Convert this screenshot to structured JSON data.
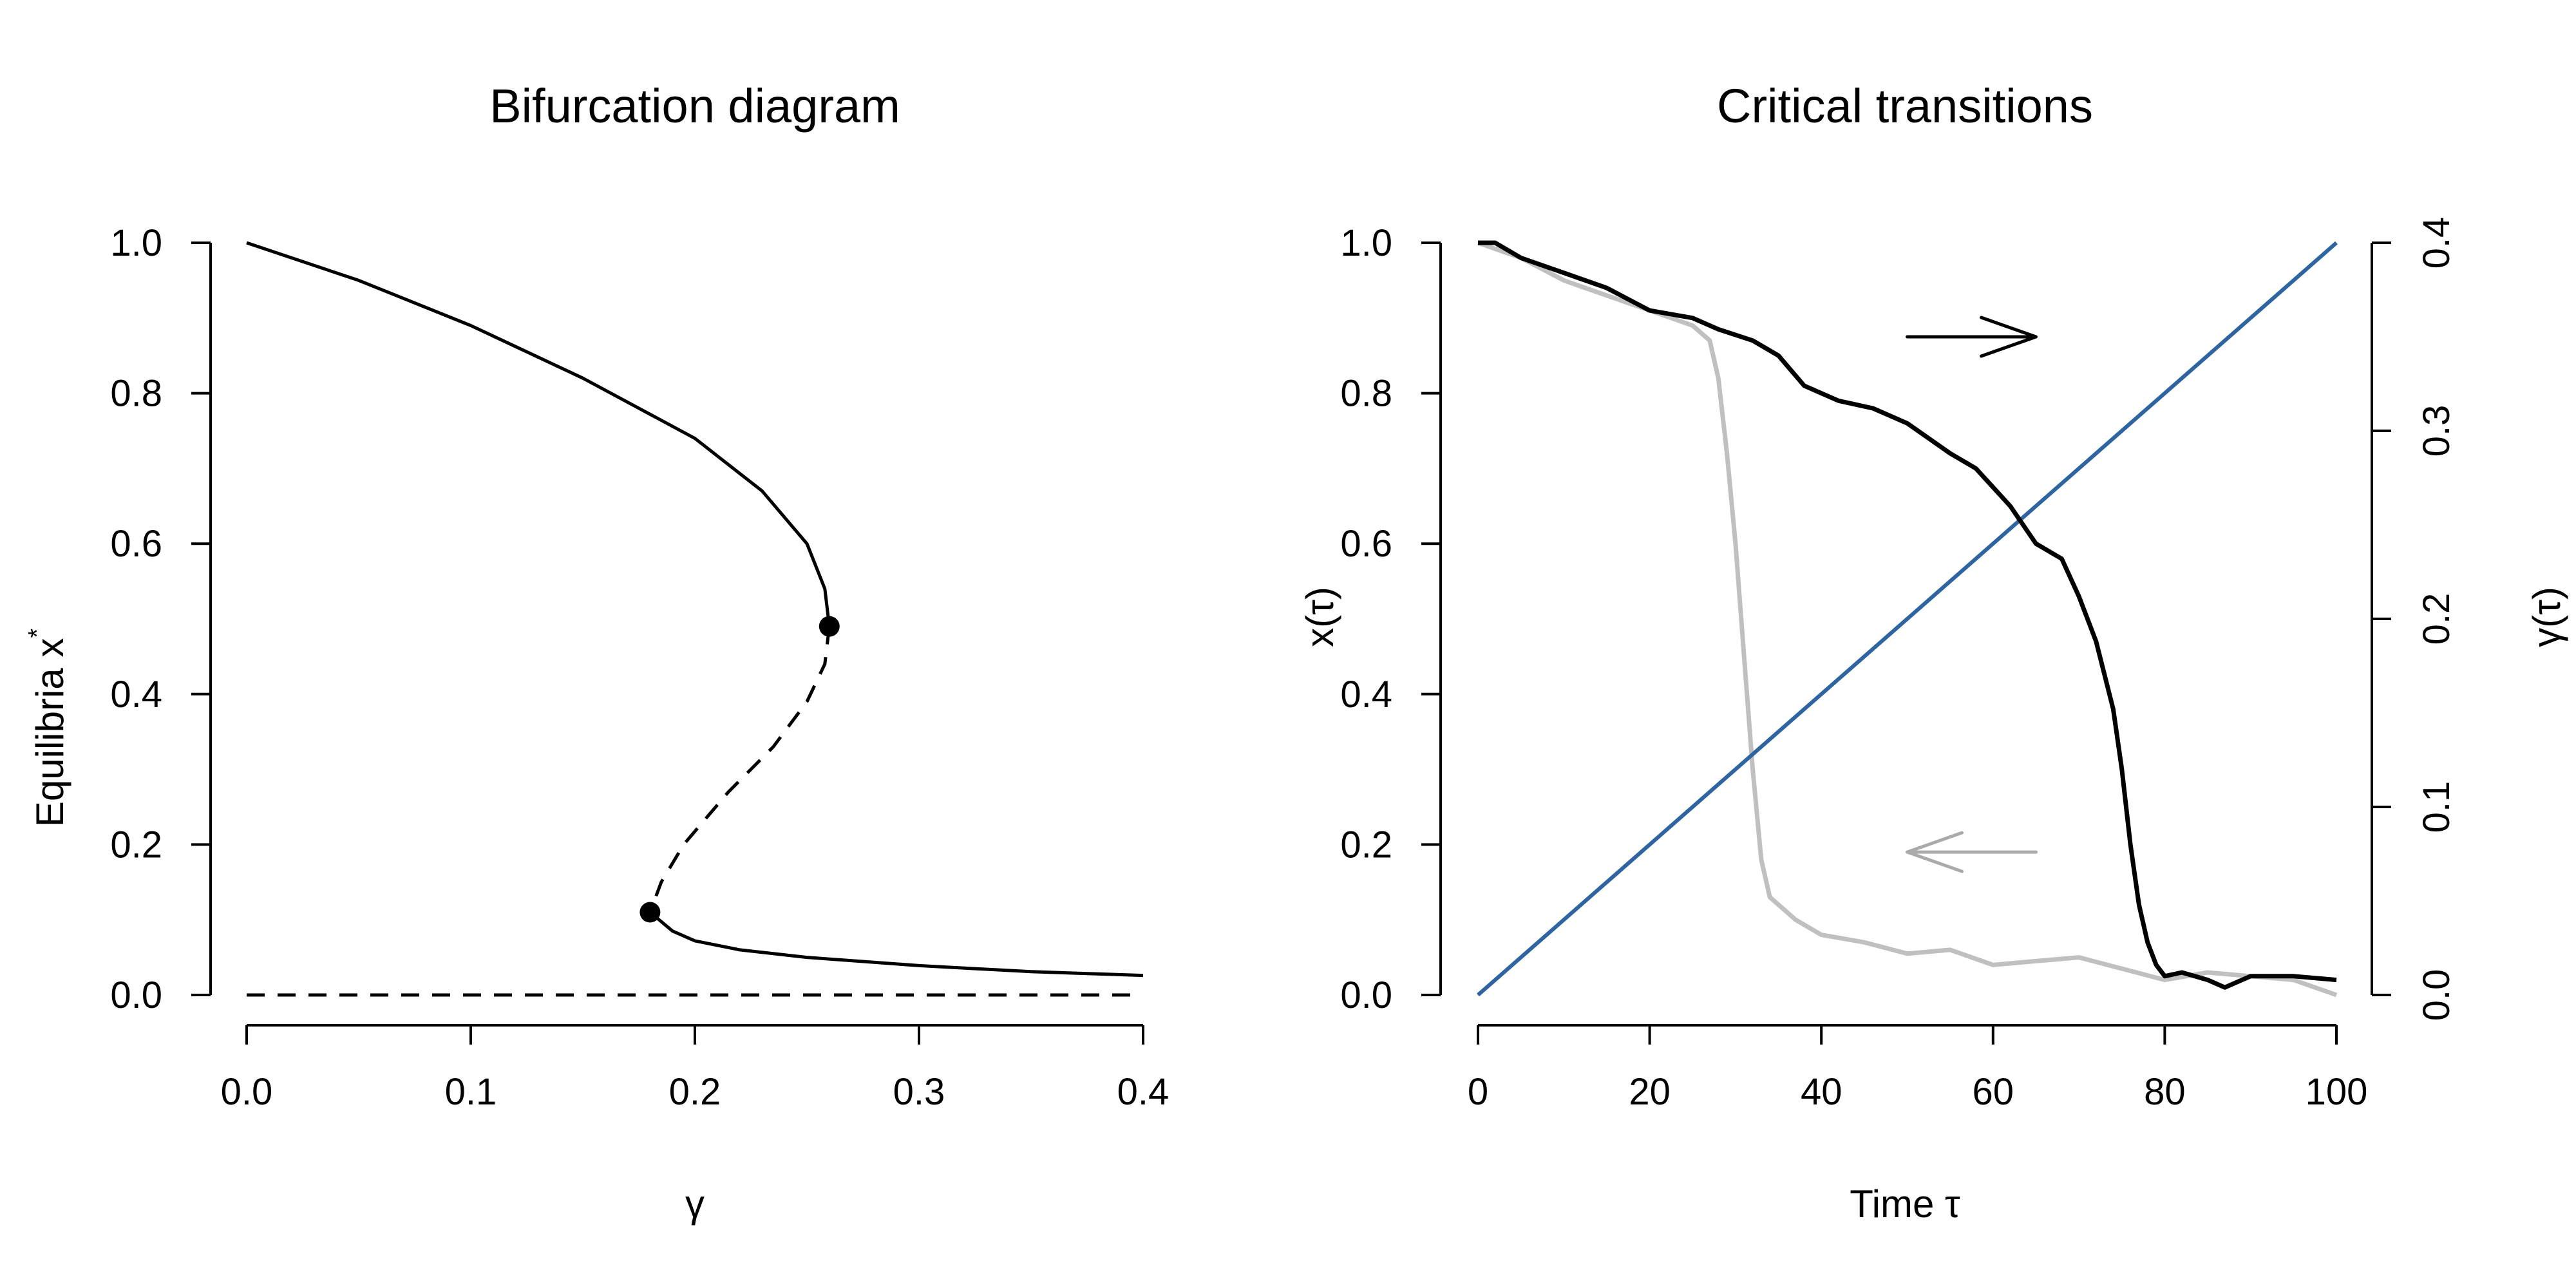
{
  "chart_data": [
    {
      "type": "line",
      "title": "Bifurcation diagram",
      "xlabel": "γ",
      "ylabel": "Equilibria x",
      "ylabel_superscript": "*",
      "xlim": [
        0,
        0.4
      ],
      "ylim": [
        0,
        1
      ],
      "xticks": [
        "0.0",
        "0.1",
        "0.2",
        "0.3",
        "0.4"
      ],
      "yticks": [
        "0.0",
        "0.2",
        "0.4",
        "0.6",
        "0.8",
        "1.0"
      ],
      "grid": false,
      "series": [
        {
          "style": "solid",
          "color": "#000000",
          "x": [
            0.0,
            0.05,
            0.1,
            0.15,
            0.2,
            0.23,
            0.25,
            0.258,
            0.26
          ],
          "y": [
            1.0,
            0.95,
            0.89,
            0.82,
            0.74,
            0.67,
            0.6,
            0.54,
            0.49
          ]
        },
        {
          "style": "dashed",
          "color": "#000000",
          "x": [
            0.26,
            0.258,
            0.25,
            0.235,
            0.215,
            0.195,
            0.185,
            0.18
          ],
          "y": [
            0.49,
            0.44,
            0.39,
            0.33,
            0.27,
            0.2,
            0.15,
            0.11
          ]
        },
        {
          "style": "solid",
          "color": "#000000",
          "x": [
            0.18,
            0.19,
            0.2,
            0.22,
            0.25,
            0.3,
            0.35,
            0.4
          ],
          "y": [
            0.11,
            0.085,
            0.072,
            0.06,
            0.05,
            0.039,
            0.031,
            0.026
          ]
        },
        {
          "style": "dashed",
          "color": "#000000",
          "x": [
            0.0,
            0.4
          ],
          "y": [
            0.0,
            0.0
          ]
        }
      ],
      "points": [
        {
          "x": 0.26,
          "y": 0.49
        },
        {
          "x": 0.18,
          "y": 0.11
        }
      ]
    },
    {
      "type": "line",
      "title": "Critical transitions",
      "xlabel": "Time  τ",
      "ylabel": "x(τ)",
      "ylabel_right": "γ(τ)",
      "xlim": [
        0,
        100
      ],
      "ylim": [
        0,
        1
      ],
      "ylim_right": [
        0,
        0.4
      ],
      "xticks": [
        "0",
        "20",
        "40",
        "60",
        "80",
        "100"
      ],
      "yticks": [
        "0.0",
        "0.2",
        "0.4",
        "0.6",
        "0.8",
        "1.0"
      ],
      "yticks_right": [
        "0.0",
        "0.1",
        "0.2",
        "0.3",
        "0.4"
      ],
      "grid": false,
      "series": [
        {
          "color": "#000000",
          "x": [
            0,
            2,
            5,
            10,
            15,
            20,
            25,
            28,
            32,
            35,
            38,
            42,
            46,
            50,
            55,
            58,
            62,
            65,
            68,
            70,
            72,
            74,
            75,
            76,
            77,
            78,
            79,
            80,
            82,
            85,
            87,
            90,
            95,
            100
          ],
          "y": [
            1.0,
            1.0,
            0.98,
            0.96,
            0.94,
            0.91,
            0.9,
            0.885,
            0.87,
            0.85,
            0.81,
            0.79,
            0.78,
            0.76,
            0.72,
            0.7,
            0.65,
            0.6,
            0.58,
            0.53,
            0.47,
            0.38,
            0.3,
            0.2,
            0.12,
            0.07,
            0.04,
            0.025,
            0.03,
            0.02,
            0.01,
            0.025,
            0.025,
            0.02
          ]
        },
        {
          "color": "#c0c0c0",
          "x": [
            0,
            5,
            10,
            15,
            20,
            25,
            27,
            28,
            29,
            30,
            31,
            32,
            33,
            34,
            35,
            37,
            40,
            45,
            50,
            55,
            60,
            65,
            70,
            75,
            80,
            85,
            90,
            95,
            100
          ],
          "y": [
            1.0,
            0.98,
            0.95,
            0.93,
            0.91,
            0.89,
            0.87,
            0.82,
            0.72,
            0.6,
            0.45,
            0.3,
            0.18,
            0.13,
            0.12,
            0.1,
            0.08,
            0.07,
            0.055,
            0.06,
            0.04,
            0.045,
            0.05,
            0.035,
            0.02,
            0.03,
            0.025,
            0.02,
            0.0
          ]
        },
        {
          "color": "#2e64a0",
          "axis": "right",
          "x": [
            0,
            100
          ],
          "y": [
            0.0,
            0.4
          ]
        }
      ],
      "annotations": [
        {
          "type": "arrow",
          "direction": "right",
          "color": "#000000",
          "x": [
            50,
            65
          ],
          "y": 0.875
        },
        {
          "type": "arrow",
          "direction": "left",
          "color": "#aaaaaa",
          "x": [
            65,
            50
          ],
          "y": 0.19
        }
      ]
    }
  ]
}
